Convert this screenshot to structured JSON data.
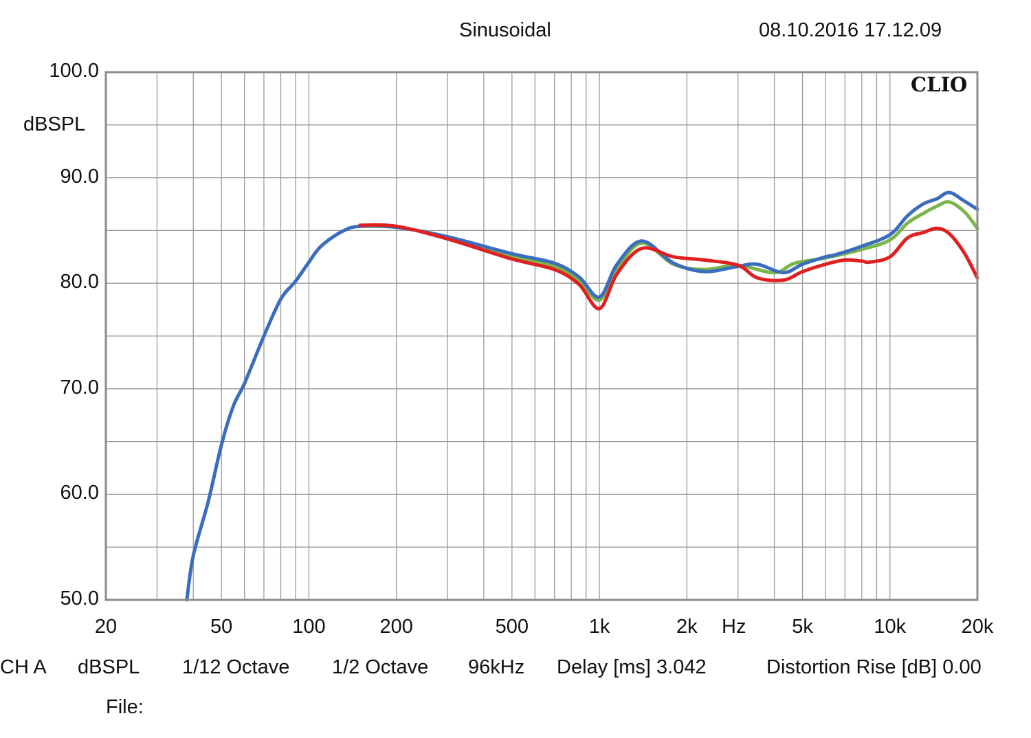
{
  "header": {
    "mode": "Sinusoidal",
    "timestamp": "08.10.2016 17.12.09"
  },
  "brand": "CLIO",
  "footer": {
    "channel": "CH A",
    "unit": "dBSPL",
    "smoothing": "1/12 Octave",
    "resolution": "1/2 Octave",
    "sample_rate": "96kHz",
    "delay": "Delay [ms] 3.042",
    "distortion": "Distortion Rise [dB] 0.00",
    "file_label": "File:"
  },
  "chart_data": {
    "type": "line",
    "title": "Sinusoidal",
    "xlabel": "Hz",
    "ylabel": "dBSPL",
    "x_scale": "log",
    "xlim": [
      20,
      20000
    ],
    "ylim": [
      50,
      100
    ],
    "grid": true,
    "y_ticks": [
      "100.0",
      "90.0",
      "80.0",
      "70.0",
      "60.0",
      "50.0"
    ],
    "x_ticks": [
      {
        "value": 20,
        "label": "20"
      },
      {
        "value": 50,
        "label": "50"
      },
      {
        "value": 100,
        "label": "100"
      },
      {
        "value": 200,
        "label": "200"
      },
      {
        "value": 500,
        "label": "500"
      },
      {
        "value": 1000,
        "label": "1k"
      },
      {
        "value": 2000,
        "label": "2k"
      },
      {
        "value": 5000,
        "label": "5k"
      },
      {
        "value": 10000,
        "label": "10k"
      },
      {
        "value": 20000,
        "label": "20k"
      }
    ],
    "series": [
      {
        "color": "#7ab648",
        "x": [
          150,
          200,
          300,
          500,
          700,
          850,
          1000,
          1150,
          1400,
          1800,
          2300,
          3000,
          4000,
          4700,
          6000,
          8000,
          10000,
          11500,
          13000,
          14500,
          16000,
          18000,
          20000
        ],
        "y": [
          85.4,
          85.3,
          84.4,
          82.6,
          81.6,
          80.3,
          78.4,
          81.4,
          83.8,
          81.8,
          81.3,
          81.7,
          81.0,
          81.9,
          82.4,
          83.2,
          84.1,
          85.7,
          86.6,
          87.3,
          87.7,
          86.8,
          85.2
        ]
      },
      {
        "color": "#3b6dbf",
        "x": [
          38,
          40,
          45,
          50,
          55,
          60,
          70,
          80,
          90,
          100,
          110,
          130,
          150,
          200,
          300,
          500,
          700,
          850,
          1000,
          1150,
          1400,
          1800,
          2300,
          3000,
          3500,
          4300,
          5000,
          6000,
          6500,
          8000,
          10000,
          11500,
          13000,
          14500,
          16000,
          18000,
          20000
        ],
        "y": [
          50.0,
          54.2,
          59.3,
          64.7,
          68.4,
          70.5,
          75.0,
          78.5,
          80.2,
          82.0,
          83.5,
          84.9,
          85.4,
          85.3,
          84.4,
          82.8,
          81.9,
          80.6,
          78.7,
          81.8,
          84.0,
          81.9,
          81.1,
          81.6,
          81.8,
          81.0,
          81.8,
          82.5,
          82.7,
          83.5,
          84.6,
          86.4,
          87.5,
          88.0,
          88.6,
          87.8,
          87.0
        ]
      },
      {
        "color": "#e02020",
        "x": [
          150,
          200,
          300,
          500,
          700,
          850,
          1000,
          1150,
          1400,
          1800,
          2300,
          3000,
          3500,
          4300,
          5000,
          6000,
          7000,
          8000,
          8500,
          10000,
          11500,
          13000,
          14500,
          16000,
          18000,
          20000
        ],
        "y": [
          85.5,
          85.4,
          84.2,
          82.3,
          81.3,
          79.9,
          77.6,
          80.9,
          83.3,
          82.5,
          82.2,
          81.7,
          80.5,
          80.3,
          81.1,
          81.8,
          82.2,
          82.1,
          82.0,
          82.5,
          84.3,
          84.8,
          85.2,
          84.7,
          82.9,
          80.5
        ]
      }
    ]
  }
}
